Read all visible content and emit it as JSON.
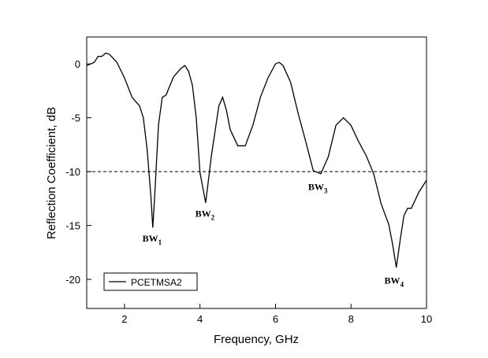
{
  "chart_data": {
    "type": "line",
    "xlabel": "Frequency, GHz",
    "ylabel": "Reflection Coefficient, dB",
    "x": [
      1,
      1.2,
      1.3,
      1.4,
      1.5,
      1.6,
      1.8,
      2.0,
      2.2,
      2.4,
      2.5,
      2.6,
      2.7,
      2.75,
      2.8,
      2.9,
      3.0,
      3.1,
      3.3,
      3.5,
      3.6,
      3.7,
      3.8,
      3.9,
      4.0,
      4.15,
      4.3,
      4.5,
      4.6,
      4.7,
      4.8,
      5.0,
      5.2,
      5.4,
      5.6,
      5.8,
      6.0,
      6.1,
      6.2,
      6.4,
      6.6,
      6.8,
      7.0,
      7.2,
      7.4,
      7.6,
      7.8,
      8.0,
      8.2,
      8.4,
      8.6,
      8.8,
      9.0,
      9.1,
      9.2,
      9.3,
      9.4,
      9.5,
      9.6,
      9.8,
      10.0
    ],
    "series": [
      {
        "name": "PCETMSA2",
        "color": "#000000",
        "values": [
          -0.15,
          0.15,
          0.7,
          0.7,
          1.0,
          0.9,
          0.15,
          -1.3,
          -3.1,
          -3.9,
          -5.0,
          -7.9,
          -12.3,
          -15.2,
          -12.3,
          -5.7,
          -3.1,
          -2.9,
          -1.2,
          -0.4,
          -0.15,
          -0.7,
          -2.0,
          -5.0,
          -10.1,
          -12.9,
          -8.6,
          -3.9,
          -3.1,
          -4.3,
          -6.1,
          -7.6,
          -7.6,
          -5.7,
          -3.1,
          -1.3,
          0,
          0.15,
          -0.15,
          -1.7,
          -4.6,
          -7.2,
          -9.9,
          -10.2,
          -8.6,
          -5.7,
          -5.0,
          -5.7,
          -7.2,
          -8.5,
          -10.2,
          -13.0,
          -14.9,
          -16.7,
          -18.9,
          -16.4,
          -14.1,
          -13.4,
          -13.4,
          -11.9,
          -10.8
        ]
      }
    ],
    "xlim": [
      1,
      10
    ],
    "ylim": [
      -22.7,
      2.5
    ],
    "xticks": [
      2,
      4,
      6,
      8,
      10
    ],
    "yticks": [
      0,
      -5,
      -10,
      -15,
      -20
    ],
    "reference_line": -10,
    "legend": "lower left",
    "annotations": [
      {
        "text": "BW",
        "sub": "1",
        "x": 2.73,
        "y": -16.2
      },
      {
        "text": "BW",
        "sub": "2",
        "x": 4.13,
        "y": -13.9
      },
      {
        "text": "BW",
        "sub": "3",
        "x": 7.12,
        "y": -11.4
      },
      {
        "text": "BW",
        "sub": "4",
        "x": 9.14,
        "y": -20.1
      }
    ]
  }
}
